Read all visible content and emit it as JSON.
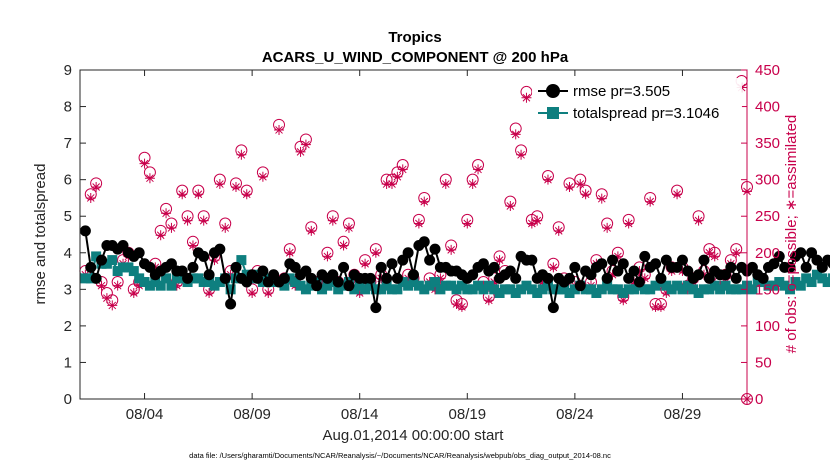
{
  "chart_data": {
    "type": "line",
    "title": "Tropics",
    "subtitle": "ACARS_U_WIND_COMPONENT @ 200 hPa",
    "xlabel": "Aug.01,2014 00:00:00 start",
    "ylabel_left": "rmse and totalspread",
    "ylabel_right": "# of obs: o=possible; ∗=assimilated",
    "footnote": "data file: /Users/gharamti/Documents/NCAR/Reanalysis/~/Documents/NCAR/Reanalysis/webpub/obs_diag_output_2014-08.nc",
    "x_tick_labels": [
      "08/04",
      "08/09",
      "08/14",
      "08/19",
      "08/24",
      "08/29"
    ],
    "x_tick_days": [
      4,
      9,
      14,
      19,
      24,
      29
    ],
    "xlim_days": [
      1,
      32
    ],
    "ylim_left": [
      0,
      9
    ],
    "yticks_left": [
      "0",
      "1",
      "2",
      "3",
      "4",
      "5",
      "6",
      "7",
      "8",
      "9"
    ],
    "ylim_right": [
      0,
      450
    ],
    "yticks_right": [
      "0",
      "50",
      "100",
      "150",
      "200",
      "250",
      "300",
      "350",
      "400",
      "450"
    ],
    "grid": false,
    "legend_position": "top-right",
    "colors": {
      "rmse": "#000000",
      "spread": "#0e7f7f",
      "obs": "#c8004b",
      "axis": "#262626"
    },
    "legend": {
      "rmse": "rmse pr=3.505",
      "spread": "totalspread pr=3.1046"
    },
    "series": [
      {
        "name": "rmse",
        "axis": "left",
        "start_day": 1.25,
        "step_days": 0.25,
        "values": [
          4.6,
          3.6,
          3.3,
          3.8,
          4.2,
          4.2,
          4.1,
          4.2,
          4.0,
          3.9,
          4.0,
          3.7,
          3.6,
          3.4,
          3.5,
          3.6,
          3.7,
          3.5,
          3.5,
          3.3,
          3.6,
          4.0,
          3.9,
          3.4,
          4.0,
          4.1,
          3.3,
          2.6,
          3.6,
          3.3,
          3.2,
          3.4,
          3.3,
          3.5,
          3.2,
          3.4,
          3.2,
          3.3,
          3.7,
          3.6,
          3.4,
          3.5,
          3.3,
          3.1,
          3.4,
          3.3,
          3.4,
          3.2,
          3.6,
          3.1,
          3.4,
          3.3,
          3.3,
          3.3,
          2.5,
          3.6,
          3.3,
          3.7,
          3.3,
          3.8,
          4.0,
          3.4,
          4.2,
          4.3,
          3.8,
          4.1,
          3.6,
          3.6,
          3.5,
          3.5,
          3.4,
          3.3,
          3.4,
          3.6,
          3.7,
          3.5,
          3.6,
          3.3,
          3.4,
          3.5,
          3.3,
          3.9,
          3.8,
          3.8,
          3.3,
          3.4,
          3.3,
          2.5,
          3.3,
          3.2,
          3.3,
          3.6,
          3.1,
          3.5,
          3.4,
          3.6,
          3.7,
          3.3,
          3.8,
          3.5,
          3.7,
          3.3,
          3.5,
          3.2,
          3.9,
          3.6,
          3.7,
          3.3,
          3.8,
          3.6,
          3.6,
          3.8,
          3.5,
          3.3,
          3.4,
          3.8,
          3.3,
          3.5,
          3.4,
          3.4,
          3.6,
          3.3,
          3.6,
          3.5,
          3.6,
          3.4,
          3.3,
          3.6,
          3.7,
          3.9,
          3.6,
          3.6,
          3.9,
          4.0,
          3.6,
          4.0,
          3.8,
          3.6,
          3.8,
          3.7,
          3.3,
          4.0,
          3.6,
          3.5,
          3.8,
          4.0,
          3.5,
          3.6,
          3.4,
          3.6,
          3.8,
          3.5,
          3.6,
          3.3,
          3.9,
          3.7,
          3.7,
          3.7,
          3.3,
          3.4,
          3.6,
          3.9,
          3.5,
          3.6,
          3.5,
          3.9,
          3.5,
          3.3,
          3.2,
          2.7,
          3.3,
          3.7,
          3.6,
          3.5,
          3.4,
          3.5
        ]
      },
      {
        "name": "totalspread",
        "axis": "left",
        "start_day": 1.25,
        "step_days": 0.25,
        "values": [
          3.3,
          3.3,
          3.9,
          3.7,
          3.7,
          3.8,
          3.5,
          3.6,
          3.6,
          3.5,
          3.3,
          3.2,
          3.1,
          3.2,
          3.1,
          3.3,
          3.1,
          3.3,
          3.3,
          3.2,
          3.3,
          3.3,
          3.2,
          3.2,
          3.1,
          3.2,
          3.3,
          3.0,
          3.3,
          3.8,
          3.4,
          3.3,
          3.4,
          3.2,
          3.3,
          3.2,
          3.2,
          3.1,
          3.3,
          3.2,
          3.1,
          3.0,
          3.1,
          3.2,
          3.0,
          3.1,
          3.2,
          3.0,
          3.1,
          3.2,
          3.0,
          3.1,
          3.0,
          3.1,
          3.0,
          3.0,
          3.1,
          3.0,
          3.0,
          3.2,
          3.1,
          3.2,
          3.1,
          3.0,
          3.1,
          3.2,
          3.0,
          3.1,
          3.1,
          3.0,
          3.1,
          3.0,
          3.0,
          3.1,
          3.0,
          3.1,
          3.0,
          2.9,
          3.0,
          3.0,
          2.9,
          3.0,
          3.1,
          3.0,
          2.9,
          3.0,
          3.1,
          3.0,
          3.0,
          3.0,
          2.9,
          3.0,
          3.1,
          3.0,
          3.0,
          2.9,
          3.0,
          3.1,
          3.0,
          3.0,
          2.9,
          3.0,
          3.0,
          3.1,
          3.0,
          3.0,
          3.1,
          3.2,
          3.1,
          3.0,
          3.1,
          3.0,
          3.1,
          3.0,
          2.9,
          3.0,
          3.0,
          3.1,
          3.0,
          3.1,
          3.0,
          3.0,
          3.0,
          3.1,
          3.0,
          3.2,
          3.2,
          3.1,
          3.1,
          3.2,
          3.1,
          3.0,
          3.2,
          3.1,
          3.3,
          3.2,
          3.4,
          3.3,
          3.2,
          3.3,
          3.4,
          3.3,
          3.5,
          3.4,
          3.3,
          3.4,
          3.3,
          3.5,
          3.4,
          3.3,
          3.2,
          3.4,
          3.3,
          3.2,
          3.3,
          3.2,
          3.1,
          3.3,
          3.2,
          3.1,
          3.2,
          3.1,
          3.0,
          3.2,
          3.1,
          3.2,
          3.1,
          3.0,
          3.1,
          3.0,
          3.0,
          3.0,
          3.1,
          3.1,
          3.0,
          3.0
        ]
      },
      {
        "name": "obs_possible",
        "axis": "right",
        "marker": "circle",
        "start_day": 1.25,
        "step_days": 0.25,
        "values": [
          175,
          280,
          295,
          160,
          145,
          135,
          160,
          190,
          200,
          150,
          160,
          330,
          310,
          185,
          230,
          260,
          240,
          160,
          285,
          250,
          215,
          285,
          250,
          150,
          195,
          300,
          240,
          175,
          295,
          340,
          285,
          150,
          175,
          310,
          150,
          165,
          375,
          165,
          205,
          160,
          345,
          355,
          235,
          160,
          160,
          200,
          250,
          160,
          215,
          240,
          170,
          150,
          190,
          160,
          205,
          170,
          300,
          300,
          310,
          320,
          170,
          165,
          245,
          275,
          165,
          155,
          170,
          300,
          210,
          135,
          130,
          245,
          300,
          320,
          160,
          140,
          165,
          195,
          175,
          270,
          370,
          340,
          420,
          245,
          250,
          165,
          305,
          185,
          235,
          165,
          295,
          160,
          300,
          285,
          160,
          190,
          280,
          240,
          175,
          200,
          140,
          245,
          165,
          180,
          170,
          275,
          130,
          130,
          150,
          180,
          285,
          180,
          155,
          165,
          250,
          175,
          205,
          200,
          160,
          170,
          190,
          205,
          435,
          290,
          250,
          250,
          345,
          200,
          180,
          320,
          210,
          245,
          225,
          300,
          100,
          335,
          275,
          285,
          210,
          285,
          250,
          205,
          230,
          345,
          155,
          290,
          210,
          195,
          300,
          190,
          335,
          230,
          320,
          150,
          215,
          250,
          200,
          250,
          190,
          185,
          220,
          180,
          240,
          140,
          250,
          190,
          180,
          200,
          200,
          300,
          260,
          240,
          160,
          245,
          320,
          220,
          165,
          180,
          290,
          165,
          165,
          300,
          180,
          305,
          330,
          330,
          260,
          240,
          225,
          285,
          170,
          225,
          185,
          245,
          330,
          255,
          200,
          330,
          150,
          170,
          330,
          165,
          170,
          210,
          255,
          400,
          190,
          180,
          240,
          165,
          335,
          265,
          180,
          195,
          245,
          180,
          240,
          185,
          155,
          165,
          215,
          225,
          175,
          220,
          180,
          230,
          265,
          315,
          250,
          255,
          205,
          195
        ]
      },
      {
        "name": "obs_assimilated",
        "axis": "right",
        "marker": "asterisk",
        "start_day": 1.25,
        "step_days": 0.25,
        "values": [
          170,
          275,
          290,
          155,
          138,
          128,
          155,
          185,
          195,
          145,
          155,
          322,
          302,
          180,
          224,
          254,
          234,
          155,
          280,
          244,
          210,
          280,
          244,
          145,
          190,
          294,
          234,
          170,
          290,
          334,
          280,
          145,
          170,
          304,
          145,
          160,
          368,
          160,
          200,
          155,
          338,
          348,
          230,
          155,
          155,
          195,
          244,
          155,
          210,
          234,
          165,
          145,
          185,
          155,
          200,
          165,
          294,
          294,
          304,
          314,
          165,
          160,
          240,
          270,
          160,
          150,
          165,
          294,
          204,
          130,
          126,
          240,
          294,
          314,
          155,
          135,
          160,
          190,
          170,
          264,
          362,
          334,
          412,
          240,
          244,
          160,
          300,
          180,
          230,
          160,
          290,
          155,
          294,
          280,
          155,
          185,
          274,
          234,
          170,
          195,
          135,
          240,
          160,
          175,
          165,
          270,
          126,
          126,
          145,
          175,
          280,
          175,
          150,
          160,
          244,
          170,
          200,
          195,
          155,
          165,
          185,
          200,
          426,
          284,
          244,
          244,
          338,
          195,
          175,
          314,
          204,
          240,
          220,
          294,
          97,
          328,
          270,
          280,
          204,
          280,
          244,
          200,
          224,
          338,
          150,
          284,
          204,
          190,
          294,
          185,
          328,
          224,
          314,
          145,
          210,
          244,
          195,
          244,
          185,
          180,
          214,
          175,
          234,
          135,
          244,
          185,
          175,
          195,
          195,
          294,
          254,
          234,
          155,
          240,
          314,
          214,
          160,
          175,
          284,
          160,
          160,
          294,
          175,
          300,
          324,
          324,
          254,
          234,
          220,
          280,
          165,
          220,
          180,
          240,
          324,
          250,
          195,
          324,
          145,
          165,
          324,
          160,
          165,
          204,
          250,
          394,
          185,
          175,
          234,
          160,
          328,
          260,
          175,
          190,
          240,
          175,
          234,
          180,
          150,
          160,
          210,
          220,
          170,
          214,
          175,
          224,
          260,
          308,
          244,
          250,
          200,
          190
        ]
      }
    ]
  }
}
